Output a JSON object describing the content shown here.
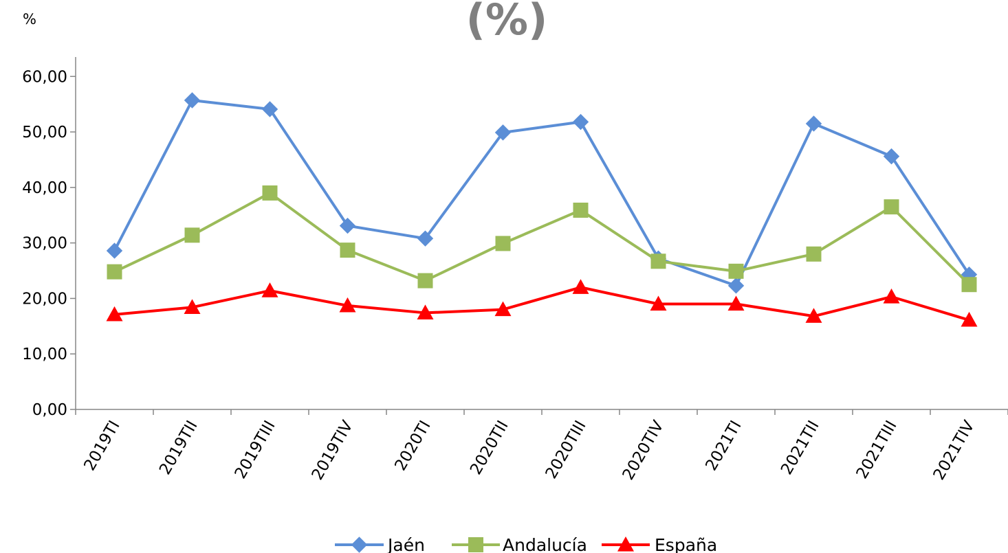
{
  "chart_data": {
    "type": "line",
    "title": "(%)",
    "ylabel": "%",
    "xlabel": "",
    "ylim": [
      0,
      60
    ],
    "yticks": [
      "0,00",
      "10,00",
      "20,00",
      "30,00",
      "40,00",
      "50,00",
      "60,00"
    ],
    "ytick_values": [
      0,
      10,
      20,
      30,
      40,
      50,
      60
    ],
    "grid": false,
    "legend_position": "bottom",
    "categories": [
      "2019TI",
      "2019TII",
      "2019TIII",
      "2019TIV",
      "2020TI",
      "2020TII",
      "2020TIII",
      "2020TIV",
      "2021TI",
      "2021TII",
      "2021TIII",
      "2021TIV"
    ],
    "series": [
      {
        "name": "Jaén",
        "color": "#5B8ED6",
        "marker": "diamond",
        "values": [
          28.6,
          55.7,
          54.1,
          33.1,
          30.8,
          49.9,
          51.8,
          27.2,
          22.3,
          51.5,
          45.6,
          24.3
        ]
      },
      {
        "name": "Andalucía",
        "color": "#9BBB59",
        "marker": "square",
        "values": [
          24.8,
          31.4,
          39.0,
          28.7,
          23.2,
          29.9,
          35.9,
          26.7,
          24.9,
          28.0,
          36.5,
          22.5
        ]
      },
      {
        "name": "España",
        "color": "#FF0000",
        "marker": "triangle",
        "values": [
          17.1,
          18.4,
          21.4,
          18.7,
          17.4,
          18.0,
          22.0,
          19.0,
          19.0,
          16.8,
          20.3,
          16.1
        ]
      }
    ]
  }
}
